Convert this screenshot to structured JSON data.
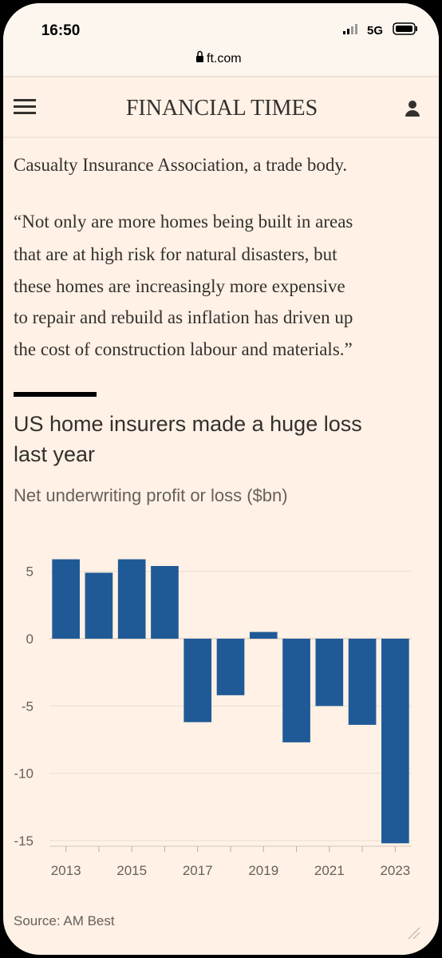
{
  "status_bar": {
    "time": "16:50",
    "network": "5G"
  },
  "url": "ft.com",
  "header": {
    "title": "FINANCIAL TIMES"
  },
  "article": {
    "lines": [
      "Casualty Insurance Association, a trade body.",
      "“Not only are more homes being built in areas",
      "that are at high risk for natural disasters, but",
      "these homes are increasingly more expensive",
      "to repair and rebuild as inflation has driven up",
      "the cost of construction labour and materials.”"
    ]
  },
  "chart_data": {
    "type": "bar",
    "title": [
      "US home insurers made a huge loss",
      "last year"
    ],
    "subtitle": "Net underwriting profit or loss ($bn)",
    "categories": [
      "2013",
      null,
      "2015",
      null,
      "2017",
      null,
      "2019",
      null,
      "2021",
      null,
      "2023"
    ],
    "values": [
      5.9,
      4.9,
      5.9,
      5.4,
      -6.2,
      -4.2,
      0.5,
      -7.7,
      -5.0,
      -6.4,
      -15.2
    ],
    "color": "#1f5a96",
    "ylim": [
      -15.3,
      7
    ],
    "yticks": [
      5,
      0,
      -5,
      -10,
      -15
    ],
    "grid": true,
    "source": "Source: AM Best"
  }
}
